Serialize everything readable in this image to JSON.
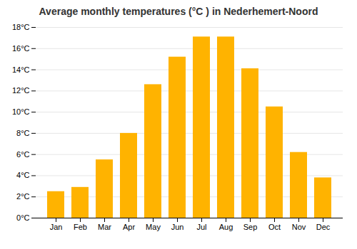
{
  "chart_data": {
    "type": "bar",
    "title": "Average monthly temperatures (°C ) in Nederhemert-Noord",
    "categories": [
      "Jan",
      "Feb",
      "Mar",
      "Apr",
      "May",
      "Jun",
      "Jul",
      "Aug",
      "Sep",
      "Oct",
      "Nov",
      "Dec"
    ],
    "values": [
      2.5,
      2.9,
      5.5,
      8.0,
      12.6,
      15.2,
      17.1,
      17.1,
      14.1,
      10.5,
      6.2,
      3.8
    ],
    "color": "#FFB300",
    "ylim": [
      0,
      18
    ],
    "yticks": [
      {
        "value": 0,
        "label": "0°C"
      },
      {
        "value": 2,
        "label": "2°C"
      },
      {
        "value": 4,
        "label": "4°C"
      },
      {
        "value": 6,
        "label": "6°C"
      },
      {
        "value": 8,
        "label": "8°C"
      },
      {
        "value": 10,
        "label": "10°C"
      },
      {
        "value": 12,
        "label": "12°C"
      },
      {
        "value": 14,
        "label": "14°C"
      },
      {
        "value": 16,
        "label": "16°C"
      },
      {
        "value": 18,
        "label": "18°C"
      }
    ],
    "grid": true
  }
}
